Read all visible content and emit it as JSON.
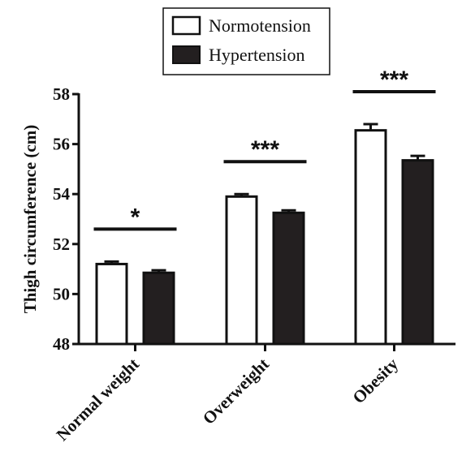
{
  "chart_data": {
    "type": "bar",
    "categories": [
      "Normal weight",
      "Overweight",
      "Obesity"
    ],
    "series": [
      {
        "name": "Normotension",
        "values": [
          51.2,
          53.9,
          56.55
        ],
        "errors": [
          0.1,
          0.1,
          0.25
        ],
        "color": "#ffffff"
      },
      {
        "name": "Hypertension",
        "values": [
          50.85,
          53.25,
          55.35
        ],
        "errors": [
          0.1,
          0.1,
          0.18
        ],
        "color": "#231f20"
      }
    ],
    "significance": [
      "*",
      "***",
      "***"
    ],
    "ylabel": "Thigh circumference (cm)",
    "ylim": [
      48,
      58
    ],
    "yticks": [
      48,
      50,
      52,
      54,
      56,
      58
    ],
    "legend_position": "top-center",
    "grid": false
  }
}
